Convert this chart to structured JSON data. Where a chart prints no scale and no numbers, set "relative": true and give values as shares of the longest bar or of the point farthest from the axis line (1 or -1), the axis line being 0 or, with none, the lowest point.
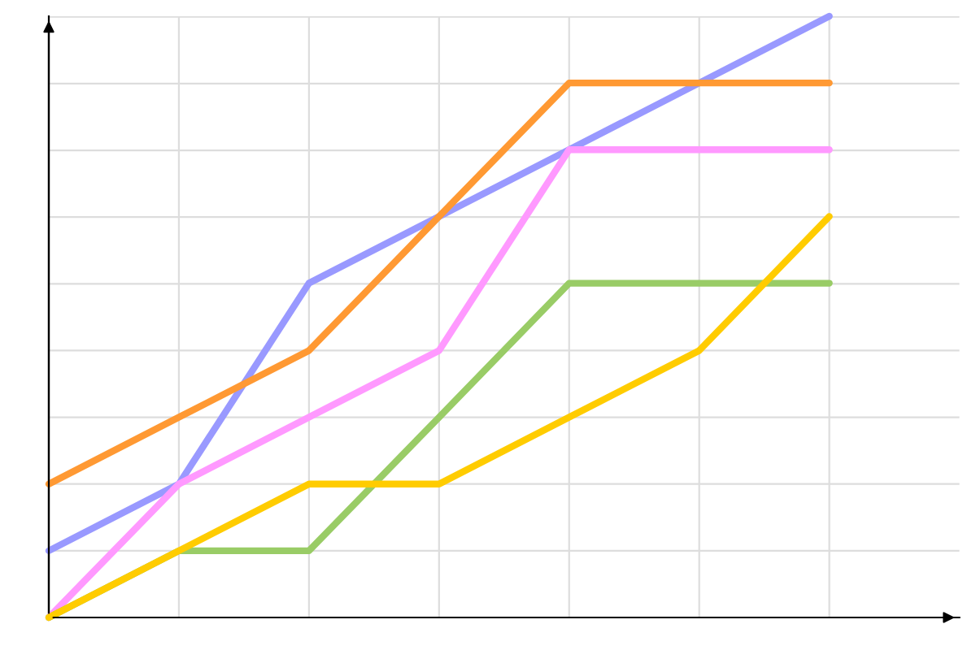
{
  "chart_data": {
    "type": "line",
    "relative": true,
    "grid": true,
    "categories": [
      null,
      null,
      null,
      null,
      null,
      null,
      null
    ],
    "series": [
      {
        "color": "#9999ff",
        "values": [
          0.111,
          0.222,
          0.556,
          0.667,
          0.778,
          0.889,
          1
        ]
      },
      {
        "color": "#ff9933",
        "values": [
          0.222,
          0.333,
          0.444,
          0.667,
          0.889,
          0.889,
          0.889
        ]
      },
      {
        "color": "#ff99ff",
        "values": [
          0,
          0.222,
          0.333,
          0.444,
          0.778,
          0.778,
          0.778
        ]
      },
      {
        "color": "#99cc66",
        "values": [
          0,
          0.111,
          0.111,
          0.333,
          0.556,
          0.556,
          0.556
        ]
      },
      {
        "color": "#ffcc00",
        "values": [
          0,
          0.111,
          0.222,
          0.222,
          0.333,
          0.444,
          0.667
        ]
      }
    ]
  }
}
